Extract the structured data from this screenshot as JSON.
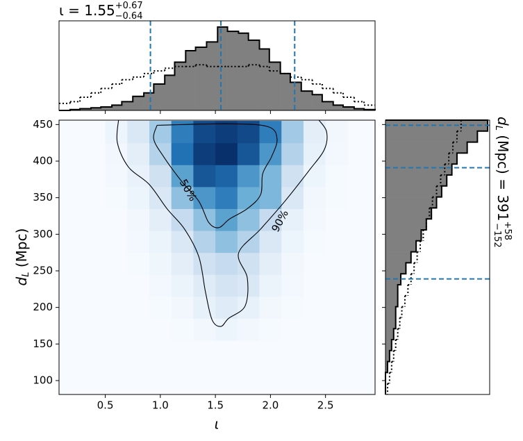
{
  "chart_data": {
    "type": "joint-density",
    "title": {
      "main": "ι = 1.55",
      "sup": "+0.67",
      "sub": "−0.64"
    },
    "right_title": {
      "d": "d",
      "dsub": "L",
      "main": " (Mpc) = 391",
      "sup": "+58",
      "sub": "−152"
    },
    "xlabel": "ι",
    "ylabel": {
      "d": "d",
      "dsub": "L",
      "rest": " (Mpc)"
    },
    "xlim": [
      0.08,
      2.95
    ],
    "ylim": [
      81,
      456
    ],
    "xticks": [
      0.5,
      {
        "value": 1,
        "label": "1.0"
      },
      1.5,
      {
        "value": 2,
        "label": "2.0"
      },
      2.5
    ],
    "yticks": [
      100,
      150,
      200,
      250,
      300,
      350,
      400,
      450
    ],
    "density": {
      "x_edges": [
        0.5,
        0.7,
        0.9,
        1.1,
        1.3,
        1.5,
        1.7,
        1.9,
        2.1,
        2.3,
        2.5,
        2.7
      ],
      "y_edges": [
        155,
        185,
        215,
        245,
        275,
        305,
        335,
        365,
        395,
        425,
        455
      ],
      "values": [
        [
          0,
          0,
          0,
          0.01,
          0.03,
          0.05,
          0.03,
          0.01,
          0,
          0,
          0
        ],
        [
          0,
          0,
          0.01,
          0.03,
          0.08,
          0.12,
          0.08,
          0.03,
          0.01,
          0,
          0
        ],
        [
          0,
          0,
          0.02,
          0.06,
          0.12,
          0.18,
          0.15,
          0.06,
          0.02,
          0,
          0
        ],
        [
          0,
          0.01,
          0.04,
          0.1,
          0.2,
          0.25,
          0.2,
          0.1,
          0.03,
          0,
          0
        ],
        [
          0,
          0.02,
          0.06,
          0.15,
          0.3,
          0.4,
          0.3,
          0.15,
          0.05,
          0.01,
          0
        ],
        [
          0,
          0.03,
          0.1,
          0.25,
          0.4,
          0.55,
          0.4,
          0.25,
          0.08,
          0.02,
          0
        ],
        [
          0.01,
          0.05,
          0.15,
          0.4,
          0.6,
          0.7,
          0.5,
          0.45,
          0.15,
          0.03,
          0.01
        ],
        [
          0.02,
          0.07,
          0.2,
          0.55,
          0.85,
          0.8,
          0.6,
          0.45,
          0.2,
          0.05,
          0.01
        ],
        [
          0.03,
          0.1,
          0.3,
          0.75,
          0.95,
          1.0,
          0.85,
          0.6,
          0.3,
          0.08,
          0.02
        ],
        [
          0.05,
          0.15,
          0.35,
          0.7,
          0.9,
          0.95,
          0.9,
          0.7,
          0.35,
          0.1,
          0.03
        ]
      ]
    },
    "contours": [
      {
        "label": "50%",
        "label_at": [
          1.25,
          360
        ],
        "x": [
          0.97,
          0.94,
          1.03,
          1.19,
          1.35,
          1.44,
          1.53,
          1.63,
          1.79,
          1.91,
          1.93,
          2.01,
          2.06,
          1.98,
          1.63,
          0.97
        ],
        "y": [
          449,
          430,
          406,
          373,
          345,
          316,
          309,
          321,
          335,
          354,
          383,
          406,
          430,
          447,
          451,
          449
        ]
      },
      {
        "label": "90%",
        "label_at": [
          2.09,
          318
        ],
        "x": [
          0.62,
          0.61,
          0.71,
          0.9,
          1.06,
          1.22,
          1.35,
          1.41,
          1.47,
          1.55,
          1.62,
          1.77,
          1.79,
          1.71,
          1.91,
          2.13,
          2.35,
          2.49,
          2.51,
          2.44
        ],
        "y": [
          456,
          425,
          392,
          368,
          335,
          307,
          269,
          221,
          183,
          174,
          185,
          202,
          240,
          274,
          307,
          345,
          387,
          416,
          440,
          456
        ]
      }
    ],
    "x_hist": {
      "bins": [
        0.08,
        0.18,
        0.27,
        0.37,
        0.46,
        0.56,
        0.65,
        0.75,
        0.85,
        0.94,
        1.04,
        1.13,
        1.23,
        1.32,
        1.42,
        1.52,
        1.61,
        1.71,
        1.8,
        1.9,
        1.99,
        2.09,
        2.18,
        2.28,
        2.38,
        2.47,
        2.57,
        2.66,
        2.76,
        2.85,
        2.95
      ],
      "posterior": [
        0,
        0.01,
        0.02,
        0.03,
        0.04,
        0.06,
        0.1,
        0.16,
        0.2,
        0.3,
        0.4,
        0.55,
        0.68,
        0.72,
        0.78,
        0.95,
        0.9,
        0.88,
        0.8,
        0.7,
        0.55,
        0.42,
        0.32,
        0.22,
        0.18,
        0.1,
        0.06,
        0.04,
        0.02,
        0.01
      ],
      "prior": [
        0.08,
        0.1,
        0.15,
        0.2,
        0.25,
        0.3,
        0.35,
        0.38,
        0.42,
        0.45,
        0.48,
        0.5,
        0.5,
        0.52,
        0.5,
        0.5,
        0.5,
        0.5,
        0.52,
        0.5,
        0.45,
        0.42,
        0.38,
        0.35,
        0.3,
        0.25,
        0.2,
        0.15,
        0.1,
        0.06
      ],
      "lim": [
        0,
        1.02
      ],
      "quantiles": [
        0.91,
        1.55,
        2.22
      ]
    },
    "y_hist": {
      "bins": [
        81,
        96,
        111,
        126,
        141,
        156,
        171,
        186,
        201,
        216,
        231,
        246,
        261,
        276,
        291,
        306,
        321,
        336,
        351,
        366,
        381,
        396,
        411,
        426,
        441,
        456
      ],
      "posterior": [
        0,
        0,
        0.02,
        0.04,
        0.06,
        0.08,
        0.1,
        0.1,
        0.12,
        0.12,
        0.15,
        0.2,
        0.25,
        0.3,
        0.35,
        0.4,
        0.45,
        0.5,
        0.55,
        0.6,
        0.65,
        0.7,
        0.8,
        0.9,
        1.0
      ],
      "prior": [
        0.02,
        0.04,
        0.06,
        0.08,
        0.1,
        0.12,
        0.14,
        0.16,
        0.19,
        0.22,
        0.25,
        0.28,
        0.31,
        0.34,
        0.37,
        0.4,
        0.43,
        0.46,
        0.5,
        0.54,
        0.58,
        0.62,
        0.66,
        0.7,
        0.74
      ],
      "lim": [
        0,
        1.02
      ],
      "quantiles": [
        239,
        391,
        449
      ]
    },
    "hist_color": "#808080",
    "quantile_color": "#1f77b4"
  }
}
